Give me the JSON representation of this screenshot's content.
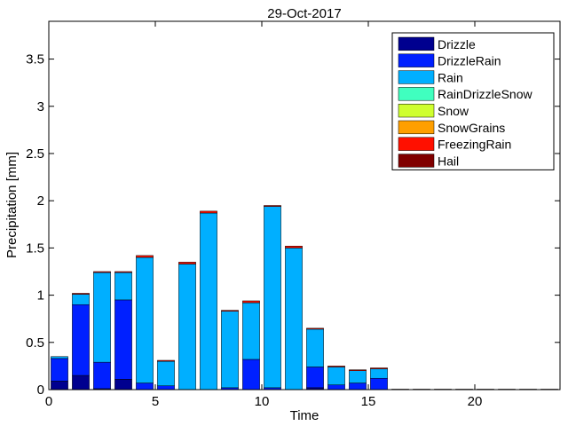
{
  "chart_data": {
    "type": "bar",
    "stacked": true,
    "title": "29-Oct-2017",
    "xlabel": "Time",
    "ylabel": "Precipitation [mm]",
    "xlim": [
      0,
      24
    ],
    "ylim": [
      0,
      3.9
    ],
    "xticks": [
      0,
      5,
      10,
      15,
      20
    ],
    "yticks": [
      0,
      0.5,
      1,
      1.5,
      2,
      2.5,
      3,
      3.5
    ],
    "xtick_labels": [
      "0",
      "5",
      "10",
      "15",
      "20"
    ],
    "ytick_labels": [
      "0",
      "0.5",
      "1",
      "1.5",
      "2",
      "2.5",
      "3",
      "3.5"
    ],
    "legend_position": "top-right",
    "x": [
      0.5,
      1.5,
      2.5,
      3.5,
      4.5,
      5.5,
      6.5,
      7.5,
      8.5,
      9.5,
      10.5,
      11.5,
      12.5,
      13.5,
      14.5,
      15.5,
      16.5,
      17.5,
      18.5,
      19.5,
      20.5,
      21.5,
      22.5,
      23.5
    ],
    "series": [
      {
        "name": "Drizzle",
        "color": "#00008f",
        "values": [
          0.09,
          0.15,
          0.01,
          0.11,
          0.0,
          0.0,
          0.0,
          0.0,
          0.0,
          0.0,
          0.0,
          0.0,
          0.02,
          0.0,
          0.0,
          0.0,
          0,
          0,
          0,
          0,
          0,
          0,
          0,
          0
        ]
      },
      {
        "name": "DrizzleRain",
        "color": "#0020ff",
        "values": [
          0.24,
          0.75,
          0.28,
          0.84,
          0.07,
          0.04,
          0.0,
          0.0,
          0.02,
          0.32,
          0.02,
          0.0,
          0.22,
          0.05,
          0.07,
          0.12,
          0,
          0,
          0,
          0,
          0,
          0,
          0,
          0
        ]
      },
      {
        "name": "Rain",
        "color": "#00afff",
        "values": [
          0.02,
          0.11,
          0.95,
          0.29,
          1.33,
          0.26,
          1.33,
          1.87,
          0.81,
          0.6,
          1.92,
          1.5,
          0.4,
          0.19,
          0.13,
          0.1,
          0,
          0,
          0,
          0,
          0,
          0,
          0,
          0
        ]
      },
      {
        "name": "RainDrizzleSnow",
        "color": "#40ffbf",
        "values": [
          0,
          0,
          0,
          0,
          0,
          0,
          0,
          0,
          0,
          0,
          0,
          0,
          0,
          0,
          0,
          0,
          0,
          0,
          0,
          0,
          0,
          0,
          0,
          0
        ]
      },
      {
        "name": "Snow",
        "color": "#cfff30",
        "values": [
          0,
          0,
          0,
          0,
          0,
          0,
          0,
          0,
          0,
          0,
          0,
          0,
          0,
          0,
          0,
          0,
          0,
          0,
          0,
          0,
          0,
          0,
          0,
          0
        ]
      },
      {
        "name": "SnowGrains",
        "color": "#ff9f00",
        "values": [
          0,
          0,
          0,
          0,
          0,
          0,
          0,
          0,
          0,
          0,
          0,
          0,
          0,
          0,
          0,
          0,
          0,
          0,
          0,
          0,
          0,
          0,
          0,
          0
        ]
      },
      {
        "name": "FreezingRain",
        "color": "#ff1000",
        "values": [
          0.0,
          0.01,
          0.01,
          0.01,
          0.02,
          0.01,
          0.02,
          0.02,
          0.01,
          0.02,
          0.01,
          0.02,
          0.01,
          0.01,
          0.01,
          0.01,
          0.005,
          0.005,
          0.005,
          0.005,
          0.005,
          0.005,
          0.005,
          0.005
        ]
      },
      {
        "name": "Hail",
        "color": "#800000",
        "values": [
          0,
          0,
          0,
          0,
          0,
          0,
          0,
          0,
          0,
          0,
          0,
          0,
          0,
          0,
          0,
          0,
          0,
          0,
          0,
          0,
          0,
          0,
          0,
          0
        ]
      }
    ]
  }
}
